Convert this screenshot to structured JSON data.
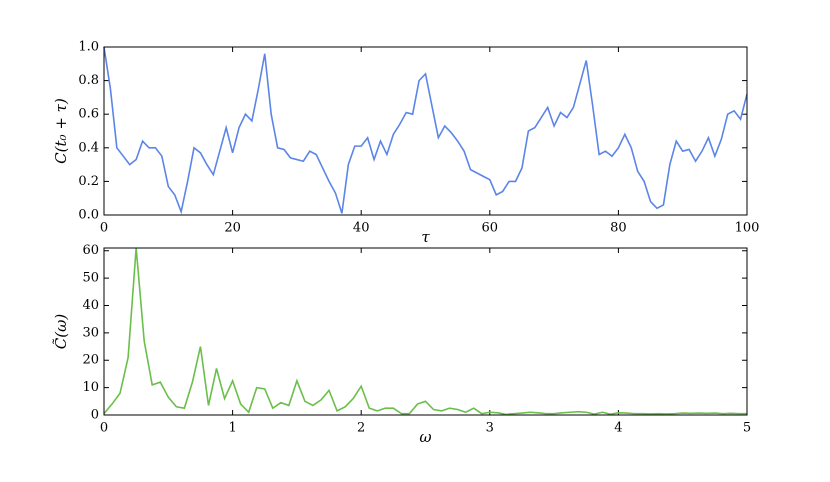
{
  "chart_data": [
    {
      "type": "line",
      "xlabel": "τ",
      "ylabel": "C(t₀ + τ)",
      "color": "#5b85e8",
      "xlim": [
        0,
        100
      ],
      "ylim": [
        0,
        1
      ],
      "xticks": [
        0,
        20,
        40,
        60,
        80,
        100
      ],
      "yticks": [
        {
          "value": 0,
          "label": "0.0"
        },
        0.2,
        0.4,
        0.6,
        0.8,
        {
          "value": 1,
          "label": "1.0"
        }
      ],
      "x": [
        0,
        1,
        2,
        3,
        4,
        5,
        6,
        7,
        8,
        9,
        10,
        11,
        12,
        13,
        14,
        15,
        16,
        17,
        18,
        19,
        20,
        21,
        22,
        23,
        24,
        25,
        26,
        27,
        28,
        29,
        30,
        31,
        32,
        33,
        34,
        35,
        36,
        37,
        38,
        39,
        40,
        41,
        42,
        43,
        44,
        45,
        46,
        47,
        48,
        49,
        50,
        51,
        52,
        53,
        54,
        55,
        56,
        57,
        58,
        59,
        60,
        61,
        62,
        63,
        64,
        65,
        66,
        67,
        68,
        69,
        70,
        71,
        72,
        73,
        74,
        75,
        76,
        77,
        78,
        79,
        80,
        81,
        82,
        83,
        84,
        85,
        86,
        87,
        88,
        89,
        90,
        91,
        92,
        93,
        94,
        95,
        96,
        97,
        98,
        99,
        100
      ],
      "values": [
        1.0,
        0.75,
        0.4,
        0.35,
        0.3,
        0.33,
        0.44,
        0.4,
        0.4,
        0.35,
        0.17,
        0.12,
        0.02,
        0.2,
        0.4,
        0.37,
        0.3,
        0.24,
        0.38,
        0.52,
        0.37,
        0.52,
        0.6,
        0.56,
        0.75,
        0.96,
        0.6,
        0.4,
        0.39,
        0.34,
        0.33,
        0.32,
        0.38,
        0.36,
        0.28,
        0.2,
        0.13,
        0.01,
        0.3,
        0.41,
        0.41,
        0.46,
        0.33,
        0.44,
        0.36,
        0.48,
        0.54,
        0.61,
        0.6,
        0.8,
        0.84,
        0.65,
        0.46,
        0.53,
        0.49,
        0.44,
        0.38,
        0.27,
        0.25,
        0.23,
        0.21,
        0.12,
        0.14,
        0.2,
        0.2,
        0.28,
        0.5,
        0.52,
        0.58,
        0.64,
        0.53,
        0.61,
        0.58,
        0.64,
        0.78,
        0.92,
        0.65,
        0.36,
        0.38,
        0.35,
        0.4,
        0.48,
        0.4,
        0.26,
        0.2,
        0.08,
        0.04,
        0.06,
        0.3,
        0.44,
        0.38,
        0.39,
        0.32,
        0.38,
        0.46,
        0.35,
        0.45,
        0.6,
        0.62,
        0.57,
        0.72
      ]
    },
    {
      "type": "line",
      "xlabel": "ω",
      "ylabel": "C̃(ω)",
      "color": "#6abf4b",
      "xlim": [
        0,
        5
      ],
      "ylim": [
        0,
        61
      ],
      "xticks": [
        0,
        1,
        2,
        3,
        4,
        5
      ],
      "yticks": [
        0,
        10,
        20,
        30,
        40,
        50,
        60
      ],
      "x": [
        0,
        0.0625,
        0.125,
        0.1875,
        0.25,
        0.3125,
        0.375,
        0.4375,
        0.5,
        0.5625,
        0.625,
        0.6875,
        0.75,
        0.8125,
        0.875,
        0.9375,
        1,
        1.0625,
        1.125,
        1.1875,
        1.25,
        1.3125,
        1.375,
        1.4375,
        1.5,
        1.5625,
        1.625,
        1.6875,
        1.75,
        1.8125,
        1.875,
        1.9375,
        2,
        2.0625,
        2.125,
        2.1875,
        2.25,
        2.3125,
        2.375,
        2.4375,
        2.5,
        2.5625,
        2.625,
        2.6875,
        2.75,
        2.8125,
        2.875,
        2.9375,
        3,
        3.0625,
        3.125,
        3.1875,
        3.25,
        3.3125,
        3.375,
        3.4375,
        3.5,
        3.5625,
        3.625,
        3.6875,
        3.75,
        3.8125,
        3.875,
        3.9375,
        4,
        4.0625,
        4.125,
        4.1875,
        4.25,
        4.3125,
        4.375,
        4.4375,
        4.5,
        4.5625,
        4.625,
        4.6875,
        4.75,
        4.8125,
        4.875,
        4.9375,
        5
      ],
      "values": [
        0.5,
        4,
        8,
        21,
        61,
        27,
        11,
        12,
        6.5,
        3,
        2.5,
        12,
        25,
        3.5,
        17,
        6,
        12.5,
        4,
        1,
        10,
        9.5,
        2.5,
        4.5,
        3.5,
        12.5,
        5,
        3.5,
        5.5,
        9,
        1.5,
        3,
        6,
        10.5,
        2.5,
        1.5,
        2.5,
        2.5,
        0.5,
        0.5,
        4,
        5,
        2,
        1.5,
        2.5,
        2,
        1,
        2.5,
        0.5,
        1,
        0.8,
        0.2,
        0.5,
        0.7,
        1,
        0.8,
        0.5,
        0.5,
        0.8,
        1,
        1.2,
        1,
        0.3,
        1,
        0.3,
        0.8,
        0.7,
        0.5,
        0.5,
        0.4,
        0.5,
        0.4,
        0.5,
        0.7,
        0.6,
        0.7,
        0.6,
        0.7,
        0.5,
        0.6,
        0.5,
        0.5
      ]
    }
  ]
}
